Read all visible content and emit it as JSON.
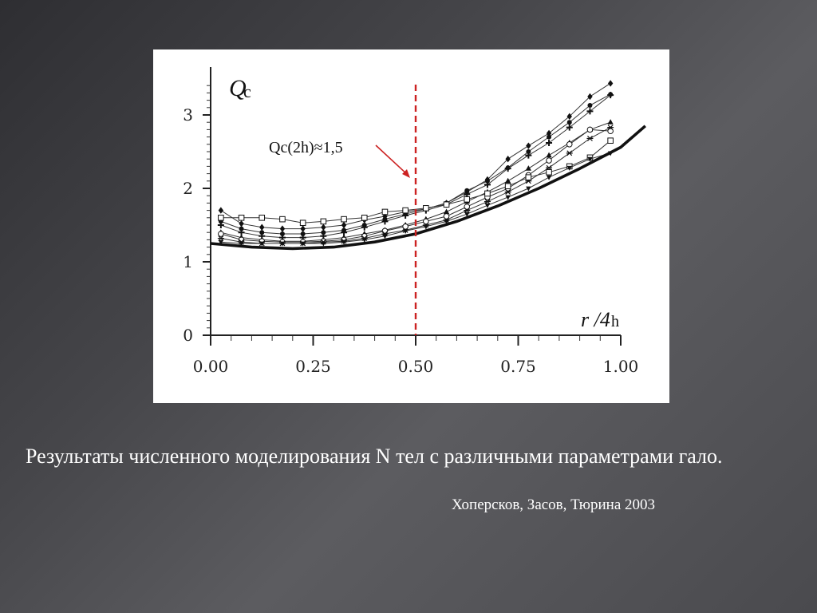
{
  "caption": "Результаты численного моделирования N тел с различными параметрами гало.",
  "author": "Хоперсков, Засов, Тюрина 2003",
  "chart_data": {
    "type": "line",
    "ylabel_main": "Q",
    "ylabel_sub": "c",
    "xlabel_main": "r /4",
    "xlabel_sub": "h",
    "annotation": "Qc(2h)≈1,5",
    "annotation_color": "#cc2222",
    "xlim": [
      0,
      1
    ],
    "ylim": [
      0,
      3.5
    ],
    "x_ticks": [
      "0.00",
      "0.25",
      "0.50",
      "0.75",
      "1.00"
    ],
    "y_ticks": [
      "0",
      "1",
      "2",
      "3"
    ],
    "vline_x": 0.5,
    "x": [
      0.025,
      0.075,
      0.125,
      0.175,
      0.225,
      0.275,
      0.325,
      0.375,
      0.425,
      0.475,
      0.525,
      0.575,
      0.625,
      0.675,
      0.725,
      0.775,
      0.825,
      0.875,
      0.925,
      0.975
    ],
    "baseline": {
      "x": [
        0.0,
        0.1,
        0.2,
        0.3,
        0.4,
        0.5,
        0.6,
        0.7,
        0.8,
        0.9,
        1.0,
        1.06
      ],
      "values": [
        1.25,
        1.2,
        1.18,
        1.2,
        1.27,
        1.38,
        1.55,
        1.76,
        2.0,
        2.27,
        2.56,
        2.85
      ]
    },
    "series": [
      {
        "marker": "diamond",
        "values": [
          1.7,
          1.52,
          1.47,
          1.45,
          1.45,
          1.47,
          1.5,
          1.57,
          1.62,
          1.68,
          1.72,
          1.8,
          1.95,
          2.12,
          2.4,
          2.58,
          2.75,
          2.98,
          3.25,
          3.43
        ]
      },
      {
        "marker": "dot",
        "values": [
          1.55,
          1.45,
          1.4,
          1.38,
          1.38,
          1.4,
          1.43,
          1.5,
          1.58,
          1.65,
          1.72,
          1.8,
          1.97,
          2.1,
          2.28,
          2.5,
          2.7,
          2.9,
          3.13,
          3.28
        ]
      },
      {
        "marker": "plus",
        "values": [
          1.5,
          1.4,
          1.35,
          1.33,
          1.33,
          1.35,
          1.4,
          1.47,
          1.55,
          1.63,
          1.7,
          1.78,
          1.92,
          2.05,
          2.27,
          2.45,
          2.62,
          2.83,
          3.05,
          3.27
        ]
      },
      {
        "marker": "triangle",
        "values": [
          1.4,
          1.33,
          1.3,
          1.28,
          1.28,
          1.3,
          1.33,
          1.38,
          1.43,
          1.5,
          1.58,
          1.68,
          1.82,
          1.95,
          2.1,
          2.27,
          2.45,
          2.62,
          2.8,
          2.9
        ]
      },
      {
        "marker": "circle",
        "values": [
          1.38,
          1.3,
          1.28,
          1.27,
          1.27,
          1.28,
          1.3,
          1.35,
          1.42,
          1.48,
          1.55,
          1.62,
          1.75,
          1.88,
          2.0,
          2.18,
          2.38,
          2.6,
          2.8,
          2.78
        ]
      },
      {
        "marker": "star",
        "values": [
          1.32,
          1.27,
          1.25,
          1.25,
          1.25,
          1.27,
          1.28,
          1.32,
          1.38,
          1.43,
          1.5,
          1.57,
          1.7,
          1.82,
          1.95,
          2.1,
          2.28,
          2.48,
          2.68,
          2.83
        ]
      },
      {
        "marker": "square",
        "values": [
          1.6,
          1.6,
          1.6,
          1.58,
          1.53,
          1.55,
          1.58,
          1.6,
          1.68,
          1.7,
          1.73,
          1.78,
          1.85,
          1.93,
          2.03,
          2.15,
          2.22,
          2.3,
          2.42,
          2.65
        ]
      },
      {
        "marker": "tri-down",
        "values": [
          1.27,
          1.25,
          1.25,
          1.25,
          1.25,
          1.25,
          1.27,
          1.3,
          1.35,
          1.42,
          1.48,
          1.55,
          1.65,
          1.77,
          1.88,
          2.0,
          2.15,
          2.28,
          2.4,
          2.48
        ]
      }
    ]
  }
}
